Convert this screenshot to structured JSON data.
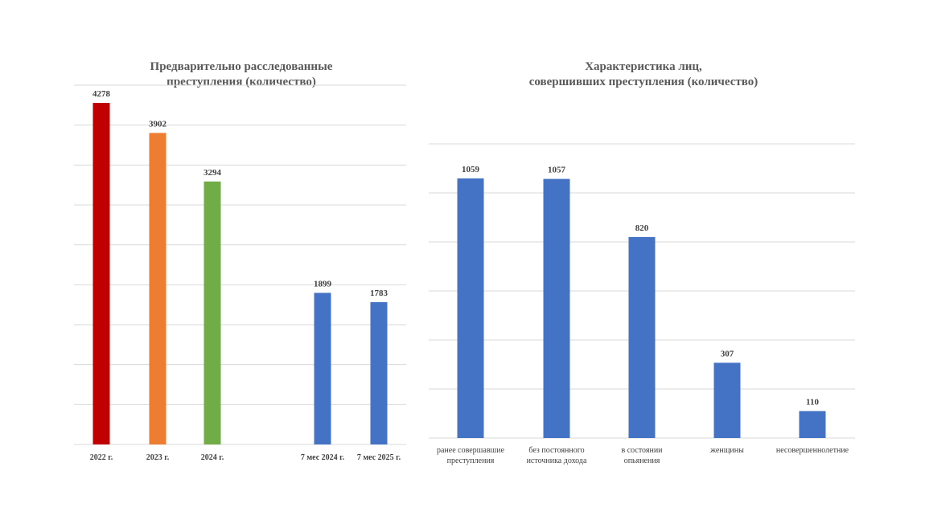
{
  "chart_data": [
    {
      "type": "bar",
      "title_line1": "Предварительно расследованные",
      "title_line2": "преступления (количество)",
      "categories": [
        "2022 г.",
        "2023 г.",
        "2024 г.",
        "7 мес 2024 г.",
        "7 мес 2025 г."
      ],
      "values": [
        4278,
        3902,
        3294,
        1899,
        1783
      ],
      "colors": [
        "#c00000",
        "#ed7d31",
        "#70ad47",
        "#4472c4",
        "#4472c4"
      ],
      "ylim": [
        0,
        4500
      ],
      "grid": true
    },
    {
      "type": "bar",
      "title_line1": "Характеристика лиц,",
      "title_line2": "совершивших преступления (количество)",
      "categories": [
        [
          "ранее совершавшие",
          "преступления"
        ],
        [
          "без постоянного",
          "источника дохода"
        ],
        [
          "в состоянии",
          "опьянения"
        ],
        [
          "женщины"
        ],
        [
          "несовершеннолетние"
        ]
      ],
      "values": [
        1059,
        1057,
        820,
        307,
        110
      ],
      "colors": [
        "#4472c4",
        "#4472c4",
        "#4472c4",
        "#4472c4",
        "#4472c4"
      ],
      "ylim": [
        0,
        1200
      ],
      "grid": true
    }
  ]
}
